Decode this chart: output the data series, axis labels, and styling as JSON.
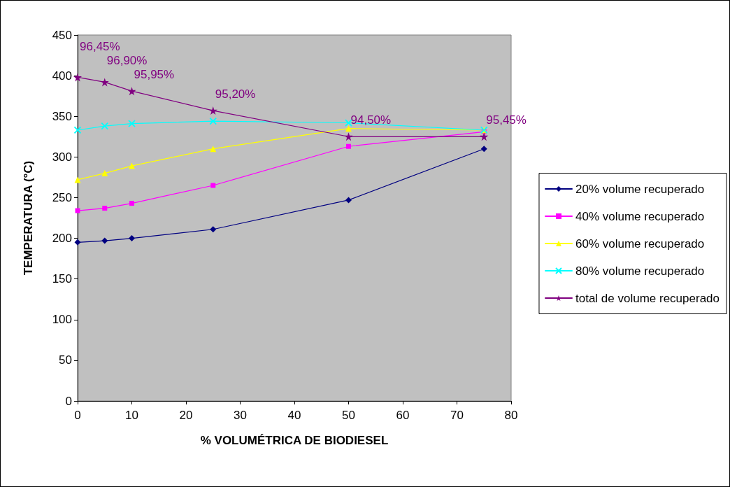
{
  "chart_data": {
    "type": "line",
    "xlabel": "% VOLUMÉTRICA DE BIODIESEL",
    "ylabel": "TEMPERATURA (°C)",
    "x": [
      0,
      5,
      10,
      25,
      50,
      75
    ],
    "series": [
      {
        "name": "20% volume recuperado",
        "color": "#000080",
        "marker": "diamond",
        "values": [
          195,
          197,
          200,
          211,
          247,
          310
        ]
      },
      {
        "name": "40% volume recuperado",
        "color": "#ff00ff",
        "marker": "square",
        "values": [
          234,
          237,
          243,
          265,
          313,
          331
        ]
      },
      {
        "name": "60% volume recuperado",
        "color": "#ffff00",
        "marker": "triangle",
        "values": [
          272,
          280,
          289,
          310,
          335,
          333
        ]
      },
      {
        "name": "80% volume recuperado",
        "color": "#00ffff",
        "marker": "cross",
        "values": [
          333,
          338,
          341,
          344,
          342,
          333
        ]
      },
      {
        "name": "total de volume recuperado",
        "color": "#800080",
        "marker": "star",
        "values": [
          398,
          392,
          381,
          357,
          325,
          325
        ]
      }
    ],
    "annotations": [
      {
        "text": "96,45%",
        "x": 0,
        "y": 398
      },
      {
        "text": "96,90%",
        "x": 5,
        "y": 392
      },
      {
        "text": "95,95%",
        "x": 10,
        "y": 381
      },
      {
        "text": "95,20%",
        "x": 25,
        "y": 357
      },
      {
        "text": "94,50%",
        "x": 50,
        "y": 325
      },
      {
        "text": "95,45%",
        "x": 75,
        "y": 325
      }
    ],
    "xlim": [
      0,
      80
    ],
    "xticks": [
      0,
      10,
      20,
      30,
      40,
      50,
      60,
      70,
      80
    ],
    "ylim": [
      0,
      450
    ],
    "yticks": [
      0,
      50,
      100,
      150,
      200,
      250,
      300,
      350,
      400,
      450
    ],
    "grid": false,
    "legend": "right",
    "line_style": "solid"
  }
}
